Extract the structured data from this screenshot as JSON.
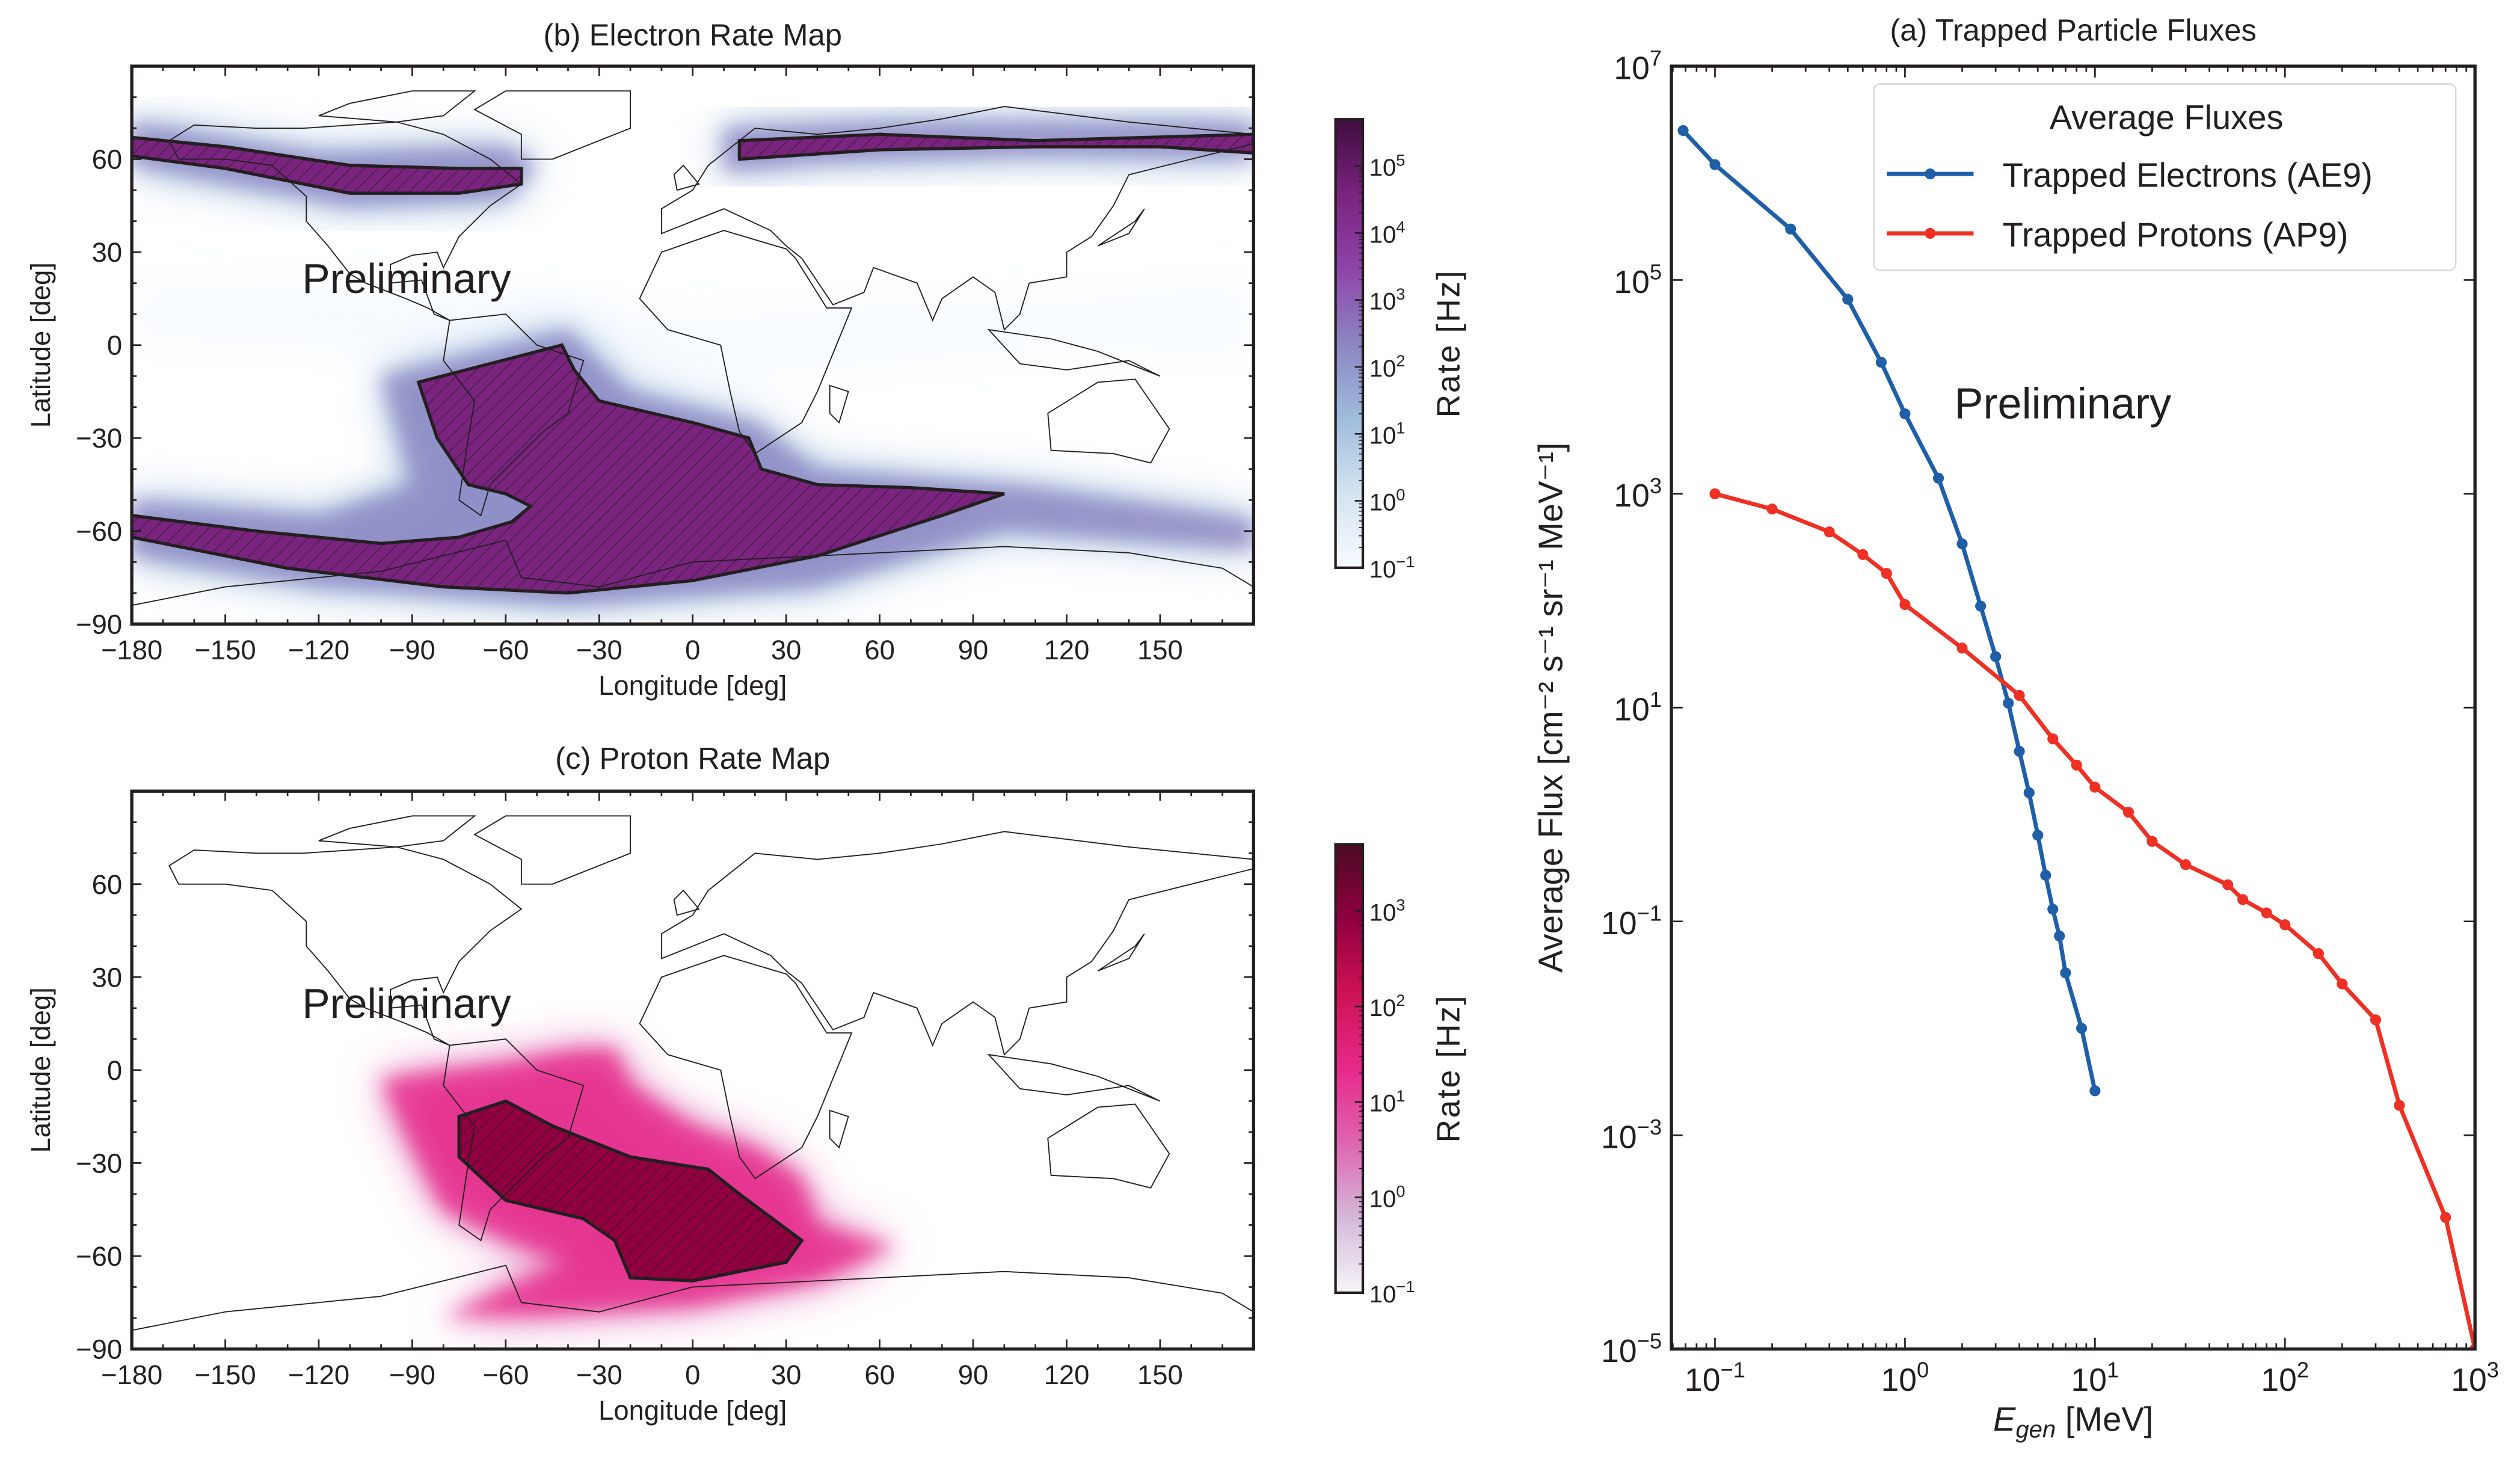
{
  "colors": {
    "electron": "#1f5fa8",
    "proton": "#ee3124",
    "axis": "#231f20"
  },
  "electron_map": {
    "title": "(b) Electron Rate Map",
    "xlabel": "Longitude [deg]",
    "ylabel": "Latitude [deg]",
    "xticks": [
      "−180",
      "−150",
      "−120",
      "−90",
      "−60",
      "−30",
      "0",
      "30",
      "60",
      "90",
      "120",
      "150"
    ],
    "xtick_values": [
      -180,
      -150,
      -120,
      -90,
      -60,
      -30,
      0,
      30,
      60,
      90,
      120,
      150
    ],
    "yticks": [
      "60",
      "30",
      "0",
      "−30",
      "−60",
      "−90"
    ],
    "ytick_values": [
      60,
      30,
      0,
      -30,
      -60,
      -90
    ],
    "watermark": "Preliminary",
    "colorbar": {
      "label": "Rate [Hz]",
      "ticks": [
        "10^5",
        "10^4",
        "10^3",
        "10^2",
        "10^1",
        "10^0",
        "10^-1"
      ],
      "range_log10": [
        -1,
        5.7
      ],
      "cmap": [
        "#f7fbff",
        "#d4e4f1",
        "#9fbcdc",
        "#8c86c2",
        "#8e44a8",
        "#7a237f",
        "#3f0d3f"
      ]
    }
  },
  "proton_map": {
    "title": "(c) Proton Rate Map",
    "xlabel": "Longitude [deg]",
    "ylabel": "Latitude [deg]",
    "xticks": [
      "−180",
      "−150",
      "−120",
      "−90",
      "−60",
      "−30",
      "0",
      "30",
      "60",
      "90",
      "120",
      "150"
    ],
    "xtick_values": [
      -180,
      -150,
      -120,
      -90,
      -60,
      -30,
      0,
      30,
      60,
      90,
      120,
      150
    ],
    "yticks": [
      "60",
      "30",
      "0",
      "−30",
      "−60",
      "−90"
    ],
    "ytick_values": [
      60,
      30,
      0,
      -30,
      -60,
      -90
    ],
    "watermark": "Preliminary",
    "colorbar": {
      "label": "Rate [Hz]",
      "ticks": [
        "10^3",
        "10^2",
        "10^1",
        "10^0",
        "10^-1"
      ],
      "range_log10": [
        -1,
        3.7
      ],
      "cmap": [
        "#f7f4f9",
        "#d4b9da",
        "#df65b0",
        "#e7298a",
        "#ce1256",
        "#91003f",
        "#4a0a22"
      ]
    }
  },
  "chart_data": {
    "type": "line",
    "title": "(a) Trapped Particle Fluxes",
    "xlabel": {
      "symbol": "E",
      "subscript": "gen",
      "unit": " [MeV]"
    },
    "ylabel": "Average Flux [cm⁻² s⁻¹ sr⁻¹ MeV⁻¹]",
    "xscale": "log",
    "yscale": "log",
    "xlim": [
      0.059,
      1000
    ],
    "ylim": [
      1e-05,
      10000000.0
    ],
    "xticks": [
      "10^-1",
      "10^0",
      "10^1",
      "10^2",
      "10^3"
    ],
    "yticks": [
      "10^7",
      "10^5",
      "10^3",
      "10^1",
      "10^-1",
      "10^-3",
      "10^-5"
    ],
    "watermark": "Preliminary",
    "legend": {
      "title": "Average Fluxes",
      "position": "top-right"
    },
    "series": [
      {
        "name": "Trapped Electrons (AE9)",
        "color": "#1f5fa8",
        "x": [
          0.068,
          0.1,
          0.25,
          0.5,
          0.75,
          1,
          1.5,
          2,
          2.5,
          3,
          3.5,
          4,
          4.5,
          5,
          5.5,
          6,
          6.5,
          7,
          8.5,
          10
        ],
        "y": [
          2500000.0,
          1200000.0,
          300000.0,
          66000.0,
          17000.0,
          5600.0,
          1400.0,
          340,
          89,
          30,
          11,
          3.9,
          1.6,
          0.64,
          0.27,
          0.13,
          0.073,
          0.033,
          0.01,
          0.0026
        ]
      },
      {
        "name": "Trapped Protons (AP9)",
        "color": "#ee3124",
        "x": [
          0.1,
          0.2,
          0.4,
          0.6,
          0.8,
          1,
          2,
          4,
          6,
          8,
          10,
          15,
          20,
          30,
          50,
          60,
          80,
          100,
          150,
          200,
          300,
          400,
          700,
          1000
        ],
        "y": [
          1000,
          720,
          440,
          270,
          180,
          92,
          36,
          13,
          5.1,
          2.9,
          1.8,
          1.05,
          0.56,
          0.34,
          0.22,
          0.16,
          0.12,
          0.093,
          0.05,
          0.026,
          0.012,
          0.0019,
          0.00017,
          1e-05
        ]
      }
    ]
  }
}
